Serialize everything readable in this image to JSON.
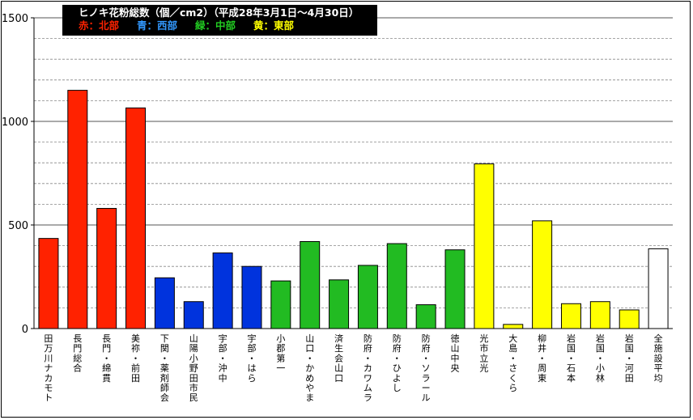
{
  "chart_data": {
    "type": "bar",
    "title": "ヒノキ花粉総数（個／cm2）（平成28年3月1日～4月30日）",
    "legend": [
      {
        "label": "赤：北部",
        "color": "#ff2200"
      },
      {
        "label": "青：西部",
        "color": "#3399ff"
      },
      {
        "label": "緑：中部",
        "color": "#22cc22"
      },
      {
        "label": "黄：東部",
        "color": "#ffff00"
      }
    ],
    "ylim": [
      0,
      1500
    ],
    "yticks": [
      0,
      500,
      1000,
      1500
    ],
    "grid": true,
    "categories": [
      "田万川ナカモト",
      "長門総合",
      "長門・綿貫",
      "美祢・前田",
      "下関・薬剤師会",
      "山陽小野田市民",
      "宇部・沖中",
      "宇部・はら",
      "小郡第一",
      "山口・かめやま",
      "済生会山口",
      "防府・カワムラ",
      "防府・ひよし",
      "防府・ソラール",
      "徳山中央",
      "光市立光",
      "大島・さくら",
      "柳井・周東",
      "岩国・石本",
      "岩国・小林",
      "岩国・河田",
      "全施設平均"
    ],
    "values": [
      435,
      1150,
      580,
      1065,
      245,
      130,
      365,
      300,
      230,
      420,
      235,
      305,
      410,
      115,
      380,
      795,
      20,
      520,
      120,
      130,
      90,
      385
    ],
    "colors": [
      "#ff2200",
      "#ff2200",
      "#ff2200",
      "#ff2200",
      "#0033dd",
      "#0033dd",
      "#0033dd",
      "#0033dd",
      "#22bb22",
      "#22bb22",
      "#22bb22",
      "#22bb22",
      "#22bb22",
      "#22bb22",
      "#22bb22",
      "#ffff00",
      "#ffff00",
      "#ffff00",
      "#ffff00",
      "#ffff00",
      "#ffff00",
      "#ffffff"
    ]
  }
}
